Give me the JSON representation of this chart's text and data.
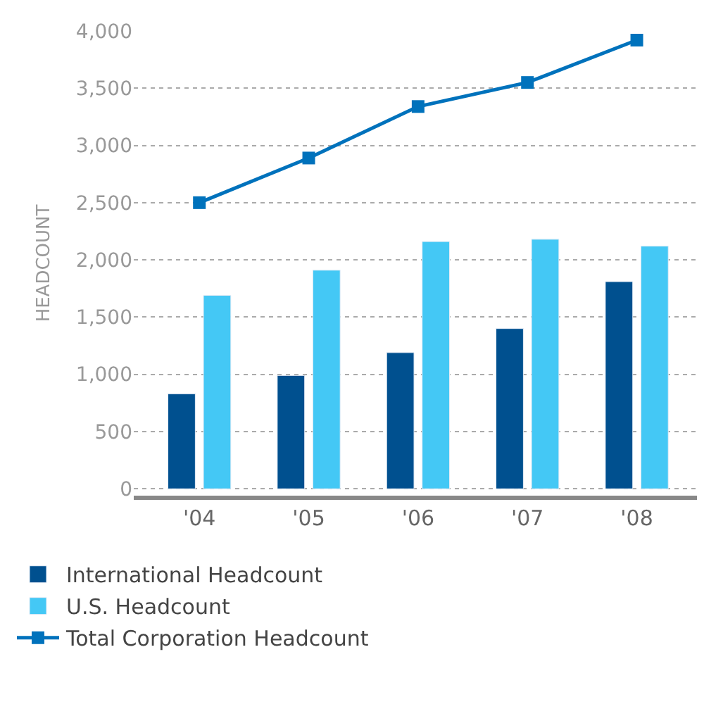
{
  "chart_data": {
    "type": "bar",
    "ylabel": "HEADCOUNT",
    "categories": [
      "'04",
      "'05",
      "'06",
      "'07",
      "'08"
    ],
    "series": [
      {
        "name": "International Headcount",
        "color": "#00508f",
        "values": [
          830,
          990,
          1190,
          1400,
          1810
        ]
      },
      {
        "name": "U.S. Headcount",
        "color": "#44c8f5",
        "values": [
          1690,
          1910,
          2160,
          2180,
          2120
        ]
      },
      {
        "name": "Total Corporation Headcount",
        "type": "line",
        "color": "#0072bc",
        "marker": "square",
        "line_style": "solid",
        "values": [
          2500,
          2890,
          3340,
          3550,
          3920
        ]
      }
    ],
    "ylim": [
      -60,
      4000
    ],
    "yticks": [
      {
        "value": 0,
        "label": "0"
      },
      {
        "value": 500,
        "label": "500"
      },
      {
        "value": 1000,
        "label": "1,000"
      },
      {
        "value": 1500,
        "label": "1,500"
      },
      {
        "value": 2000,
        "label": "2,000"
      },
      {
        "value": 2500,
        "label": "2,500"
      },
      {
        "value": 3000,
        "label": "3,000"
      },
      {
        "value": 3500,
        "label": "3,500"
      },
      {
        "value": 4000,
        "label": "4,000"
      }
    ],
    "grid": "y",
    "legend": "bottom"
  }
}
